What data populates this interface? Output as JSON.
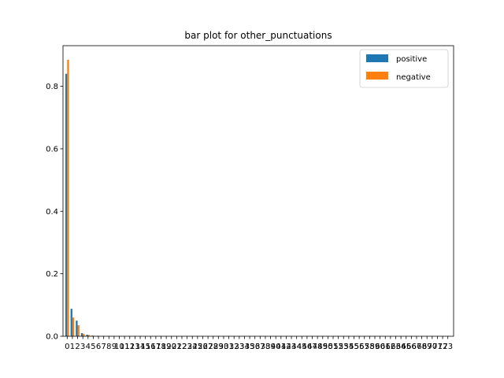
{
  "chart_data": {
    "type": "bar",
    "title": "bar plot for other_punctuations",
    "xlabel": "",
    "ylabel": "",
    "ylim": [
      0,
      0.93
    ],
    "yticks": [
      0.0,
      0.2,
      0.4,
      0.6,
      0.8
    ],
    "ytick_labels": [
      "0.0",
      "0.2",
      "0.4",
      "0.6",
      "0.8"
    ],
    "categories": [
      "0",
      "1",
      "2",
      "3",
      "4",
      "5",
      "6",
      "7",
      "8",
      "9",
      "10",
      "11",
      "12",
      "13",
      "14",
      "15",
      "16",
      "17",
      "18",
      "19",
      "20",
      "21",
      "22",
      "23",
      "24",
      "25",
      "26",
      "27",
      "28",
      "29",
      "30",
      "31",
      "32",
      "33",
      "34",
      "35",
      "36",
      "37",
      "38",
      "39",
      "40",
      "41",
      "42",
      "43",
      "44",
      "45",
      "46",
      "47",
      "48",
      "49",
      "50",
      "51",
      "52",
      "53",
      "54",
      "55",
      "56",
      "57",
      "58",
      "59",
      "60",
      "61",
      "62",
      "63",
      "64",
      "65",
      "66",
      "67",
      "68",
      "69",
      "70",
      "71",
      "72",
      "73"
    ],
    "series": [
      {
        "name": "positive",
        "color": "#1f77b4",
        "values": [
          0.84,
          0.088,
          0.05,
          0.01,
          0.005,
          0.002,
          0.0015,
          0.001,
          0.0008,
          0.0006,
          0.0005,
          0.0004,
          0.0003,
          0.0003,
          0.0002,
          0.0002,
          0.0002,
          0.0001,
          0.0001,
          0.0001,
          0.0001,
          0.0001,
          0.0001,
          0.0001,
          0.0001,
          0.0001,
          0.0001,
          0.0001,
          0.0001,
          0.0001,
          0.0001,
          0.0001,
          0.0001,
          0.0001,
          0.0001,
          0.0001,
          0.0001,
          0.0001,
          0.0001,
          0.0001,
          0.0001,
          0.0001,
          0.0001,
          0.0001,
          0.0001,
          0.0001,
          0.0001,
          0.0001,
          0.0001,
          0.0001,
          0.0001,
          0.0001,
          0.0001,
          0.0001,
          0.0001,
          0.0001,
          0.0001,
          0.0001,
          0.0001,
          0.0001,
          0.0001,
          0.0001,
          0.0001,
          0.0001,
          0.0001,
          0.0001,
          0.0001,
          0.0001,
          0.0001,
          0.0001,
          0.0001,
          0.0001,
          0.0001,
          0.0001
        ]
      },
      {
        "name": "negative",
        "color": "#ff7f0e",
        "values": [
          0.885,
          0.06,
          0.035,
          0.008,
          0.004,
          0.0015,
          0.001,
          0.0008,
          0.0006,
          0.0005,
          0.0004,
          0.0003,
          0.0002,
          0.0002,
          0.0002,
          0.0001,
          0.0001,
          0.0001,
          0.0001,
          0.0001,
          0.0001,
          0.0001,
          0.0001,
          0.0001,
          0.0001,
          0.0001,
          0.0001,
          0.0001,
          0.0001,
          0.0001,
          0.0001,
          0.0001,
          0.0001,
          0.0001,
          0.0001,
          0.0001,
          0.0001,
          0.0001,
          0.0001,
          0.0001,
          0.0001,
          0.0001,
          0.0001,
          0.0001,
          0.0001,
          0.0001,
          0.0001,
          0.0001,
          0.0001,
          0.0001,
          0.0001,
          0.0001,
          0.0001,
          0.0001,
          0.0001,
          0.0001,
          0.0001,
          0.0001,
          0.0001,
          0.0001,
          0.0001,
          0.0001,
          0.0001,
          0.0001,
          0.0001,
          0.0001,
          0.0001,
          0.0001,
          0.0001,
          0.0001,
          0.0001,
          0.0001,
          0.0001,
          0.0001
        ]
      }
    ],
    "grid": false,
    "legend_position": "top-right"
  }
}
